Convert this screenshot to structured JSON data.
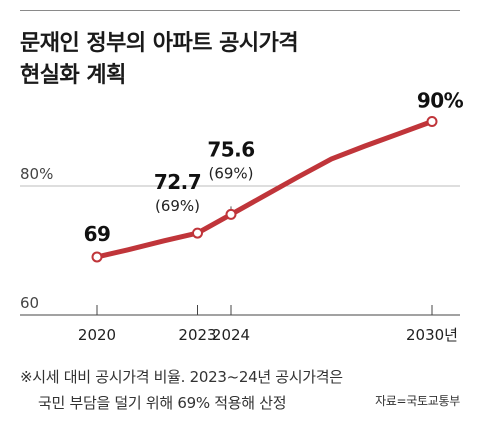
{
  "title": {
    "line1": "문재인 정부의 아파트 공시가격",
    "line2": "현실화 계획"
  },
  "footnote": {
    "line1": "※시세 대비 공시가격 비율. 2023~24년 공시가격은",
    "line2": "국민 부담을 덜기 위해 69% 적용해 산정"
  },
  "source": "자료=국토교통부",
  "chart_data": {
    "type": "line",
    "x": [
      2020,
      2021,
      2022,
      2023,
      2024,
      2025,
      2026,
      2027,
      2028,
      2029,
      2030
    ],
    "values": [
      69,
      70.2,
      71.5,
      72.7,
      75.6,
      78.5,
      81.4,
      84.2,
      86.2,
      88.1,
      90
    ],
    "series_color": "#c0353a",
    "xtick_labels": [
      {
        "x": 2020,
        "label": "2020"
      },
      {
        "x": 2023,
        "label": "2023"
      },
      {
        "x": 2024,
        "label": "2024"
      },
      {
        "x": 2030,
        "label": "2030년"
      }
    ],
    "ytick_labels": [
      {
        "y": 60,
        "label": "60"
      },
      {
        "y": 80,
        "label": "80%"
      }
    ],
    "ylim": [
      60,
      92
    ],
    "grid": true,
    "markers": [
      {
        "x": 2020,
        "y": 69,
        "label": "69",
        "sublabel": ""
      },
      {
        "x": 2023,
        "y": 72.7,
        "label": "72.7",
        "sublabel": "(69%)"
      },
      {
        "x": 2024,
        "y": 75.6,
        "label": "75.6",
        "sublabel": "(69%)"
      },
      {
        "x": 2030,
        "y": 90,
        "label": "90%",
        "sublabel": ""
      }
    ]
  }
}
